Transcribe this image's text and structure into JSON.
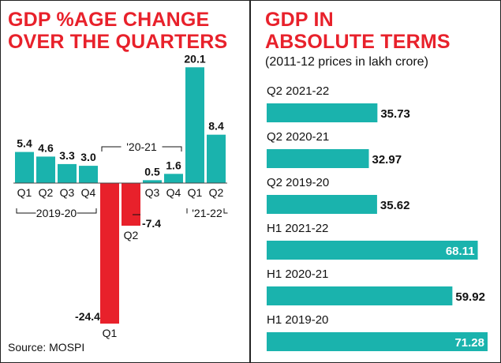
{
  "left": {
    "title_line1": "GDP %AGE CHANGE",
    "title_line2": "OVER THE QUARTERS",
    "source": "Source: MOSPI"
  },
  "right": {
    "title_line1": "GDP IN",
    "title_line2": "ABSOLUTE TERMS",
    "subtitle": "(2011-12 prices in lakh crore)"
  },
  "colors": {
    "title": "#e8212b",
    "teal": "#1ab3ad",
    "red": "#e8212b"
  },
  "chart_data": [
    {
      "type": "bar",
      "title": "GDP %AGE CHANGE OVER THE QUARTERS",
      "categories": [
        "Q1",
        "Q2",
        "Q3",
        "Q4",
        "Q1",
        "Q2",
        "Q3",
        "Q4",
        "Q1",
        "Q2"
      ],
      "groups": [
        {
          "label": "2019-20",
          "categories": [
            "Q1",
            "Q2",
            "Q3",
            "Q4"
          ]
        },
        {
          "label": "'20-21",
          "categories": [
            "Q1",
            "Q2",
            "Q3",
            "Q4"
          ]
        },
        {
          "label": "'21-22",
          "categories": [
            "Q1",
            "Q2"
          ]
        }
      ],
      "values": [
        5.4,
        4.6,
        3.3,
        3.0,
        -24.4,
        -7.4,
        0.5,
        1.6,
        20.1,
        8.4
      ],
      "value_labels": [
        "5.4",
        "4.6",
        "3.3",
        "3.0",
        "-24.4",
        "-7.4",
        "0.5",
        "1.6",
        "20.1",
        "8.4"
      ],
      "ylim": [
        -24.4,
        20.1
      ]
    },
    {
      "type": "bar",
      "orientation": "horizontal",
      "title": "GDP IN ABSOLUTE TERMS",
      "subtitle": "(2011-12 prices in lakh crore)",
      "categories": [
        "Q2 2021-22",
        "Q2 2020-21",
        "Q2 2019-20",
        "H1 2021-22",
        "H1 2020-21",
        "H1 2019-20"
      ],
      "values": [
        35.73,
        32.97,
        35.62,
        68.11,
        59.92,
        71.28
      ],
      "value_labels": [
        "35.73",
        "32.97",
        "35.62",
        "68.11",
        "59.92",
        "71.28"
      ],
      "xlim": [
        0,
        71.28
      ]
    }
  ]
}
